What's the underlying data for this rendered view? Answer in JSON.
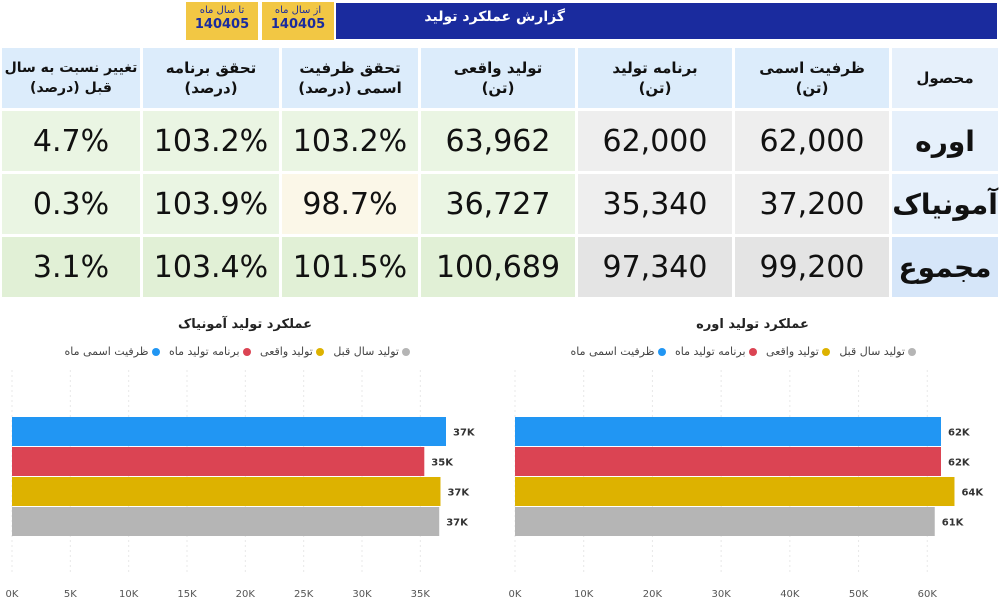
{
  "colors": {
    "title_bar": "#1a2b9e",
    "date_box": "#f2c744",
    "capacity": "#2196f3",
    "plan": "#db4453",
    "actual": "#ddb200",
    "last_year": "#b5b5b5"
  },
  "header": {
    "title": "گزارش عملکرد تولید",
    "from_label": "از سال ماه",
    "from_value": "140405",
    "to_label": "تا سال ماه",
    "to_value": "140405"
  },
  "table": {
    "headers": {
      "product": "محصول",
      "capacity_1": "ظرفیت اسمی",
      "capacity_2": "(تن)",
      "plan_1": "برنامه تولید",
      "plan_2": "(تن)",
      "actual_1": "تولید واقعی",
      "actual_2": "(تن)",
      "cap_ach_1": "تحقق ظرفیت",
      "cap_ach_2": "اسمی (درصد)",
      "plan_ach_1": "تحقق برنامه",
      "plan_ach_2": "(درصد)",
      "change_1": "تغییر نسبت به سال",
      "change_2": "قبل (درصد)"
    },
    "rows": [
      {
        "product": "اوره",
        "capacity": "62,000",
        "plan": "62,000",
        "actual": "63,962",
        "cap_ach": "103.2%",
        "plan_ach": "103.2%",
        "change": "4.7%"
      },
      {
        "product": "آمونیاک",
        "capacity": "37,200",
        "plan": "35,340",
        "actual": "36,727",
        "cap_ach": "98.7%",
        "plan_ach": "103.9%",
        "change": "0.3%"
      },
      {
        "product": "مجموع",
        "capacity": "99,200",
        "plan": "97,340",
        "actual": "100,689",
        "cap_ach": "101.5%",
        "plan_ach": "103.4%",
        "change": "3.1%"
      }
    ]
  },
  "chart_data": [
    {
      "type": "bar",
      "orientation": "horizontal",
      "title": "عملکرد تولید آمونیاک",
      "legend": [
        "ظرفیت اسمی ماه",
        "برنامه تولید ماه",
        "تولید واقعی",
        "تولید سال قبل"
      ],
      "series": [
        {
          "name": "ظرفیت اسمی ماه",
          "value": 37200,
          "label": "37K",
          "color": "#2196f3"
        },
        {
          "name": "برنامه تولید ماه",
          "value": 35340,
          "label": "35K",
          "color": "#db4453"
        },
        {
          "name": "تولید واقعی",
          "value": 36727,
          "label": "37K",
          "color": "#ddb200"
        },
        {
          "name": "تولید سال قبل",
          "value": 36620,
          "label": "37K",
          "color": "#b5b5b5"
        }
      ],
      "xticks": [
        "0K",
        "5K",
        "10K",
        "15K",
        "20K",
        "25K",
        "30K",
        "35K"
      ],
      "xlim": [
        0,
        38000
      ]
    },
    {
      "type": "bar",
      "orientation": "horizontal",
      "title": "عملکرد تولید اوره",
      "legend": [
        "ظرفیت اسمی ماه",
        "برنامه تولید ماه",
        "تولید واقعی",
        "تولید سال قبل"
      ],
      "series": [
        {
          "name": "ظرفیت اسمی ماه",
          "value": 62000,
          "label": "62K",
          "color": "#2196f3"
        },
        {
          "name": "برنامه تولید ماه",
          "value": 62000,
          "label": "62K",
          "color": "#db4453"
        },
        {
          "name": "تولید واقعی",
          "value": 63962,
          "label": "64K",
          "color": "#ddb200"
        },
        {
          "name": "تولید سال قبل",
          "value": 61090,
          "label": "61K",
          "color": "#b5b5b5"
        }
      ],
      "xticks": [
        "0K",
        "10K",
        "20K",
        "30K",
        "40K",
        "50K",
        "60K"
      ],
      "xlim": [
        0,
        66000
      ]
    }
  ]
}
